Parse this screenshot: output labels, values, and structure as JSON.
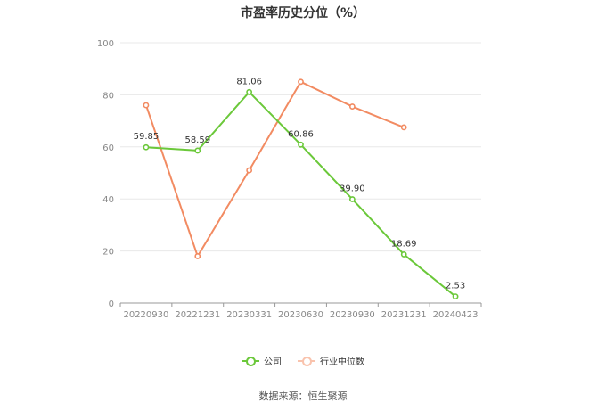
{
  "chart_data": {
    "type": "line",
    "title": "市盈率历史分位（%）",
    "categories": [
      "20220930",
      "20221231",
      "20230331",
      "20230630",
      "20230930",
      "20231231",
      "20240423"
    ],
    "ylim": [
      0,
      100
    ],
    "yticks": [
      0,
      20,
      40,
      60,
      80,
      100
    ],
    "grid": true,
    "legend_position": "bottom",
    "series": [
      {
        "name": "公司",
        "color": "#6bc83a",
        "values": [
          59.85,
          58.59,
          81.06,
          60.86,
          39.9,
          18.69,
          2.53
        ],
        "labels": [
          "59.85",
          "58.59",
          "81.06",
          "60.86",
          "39.90",
          "18.69",
          "2.53"
        ]
      },
      {
        "name": "行业中位数",
        "color": "#f28b62",
        "values": [
          76,
          18,
          51,
          85,
          75.5,
          67.5,
          null
        ]
      }
    ]
  },
  "footer": "数据来源：恒生聚源"
}
